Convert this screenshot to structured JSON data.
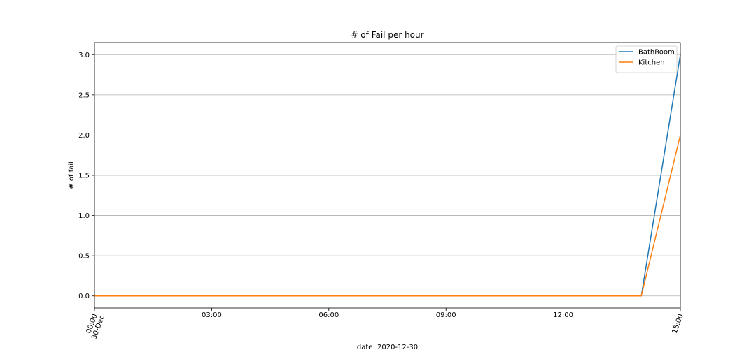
{
  "chart_data": {
    "type": "line",
    "title": "# of Fail per hour",
    "xlabel": "date: 2020-12-30",
    "ylabel": "# of fail",
    "x": [
      "00:00",
      "01:00",
      "02:00",
      "03:00",
      "04:00",
      "05:00",
      "06:00",
      "07:00",
      "08:00",
      "09:00",
      "10:00",
      "11:00",
      "12:00",
      "13:00",
      "14:00",
      "15:00"
    ],
    "series": [
      {
        "name": "BathRoom",
        "color": "#1f77b4",
        "values": [
          0,
          0,
          0,
          0,
          0,
          0,
          0,
          0,
          0,
          0,
          0,
          0,
          0,
          0,
          0,
          3
        ]
      },
      {
        "name": "Kitchen",
        "color": "#ff7f0e",
        "values": [
          0,
          0,
          0,
          0,
          0,
          0,
          0,
          0,
          0,
          0,
          0,
          0,
          0,
          0,
          0,
          2
        ]
      }
    ],
    "xlim": [
      "00:00",
      "15:00"
    ],
    "ylim": [
      -0.15,
      3.15
    ],
    "x_ticks": [
      {
        "hour": 0,
        "label": "00:00",
        "sublabel": "30-Dec",
        "rotated": true
      },
      {
        "hour": 3,
        "label": "03:00"
      },
      {
        "hour": 6,
        "label": "06:00"
      },
      {
        "hour": 9,
        "label": "09:00"
      },
      {
        "hour": 12,
        "label": "12:00"
      },
      {
        "hour": 15,
        "label": "15:00",
        "rotated": true
      }
    ],
    "y_ticks": [
      {
        "value": 0.0,
        "label": "0.0"
      },
      {
        "value": 0.5,
        "label": "0.5"
      },
      {
        "value": 1.0,
        "label": "1.0"
      },
      {
        "value": 1.5,
        "label": "1.5"
      },
      {
        "value": 2.0,
        "label": "2.0"
      },
      {
        "value": 2.5,
        "label": "2.5"
      },
      {
        "value": 3.0,
        "label": "3.0"
      }
    ],
    "grid": "y",
    "legend": "top-right"
  }
}
